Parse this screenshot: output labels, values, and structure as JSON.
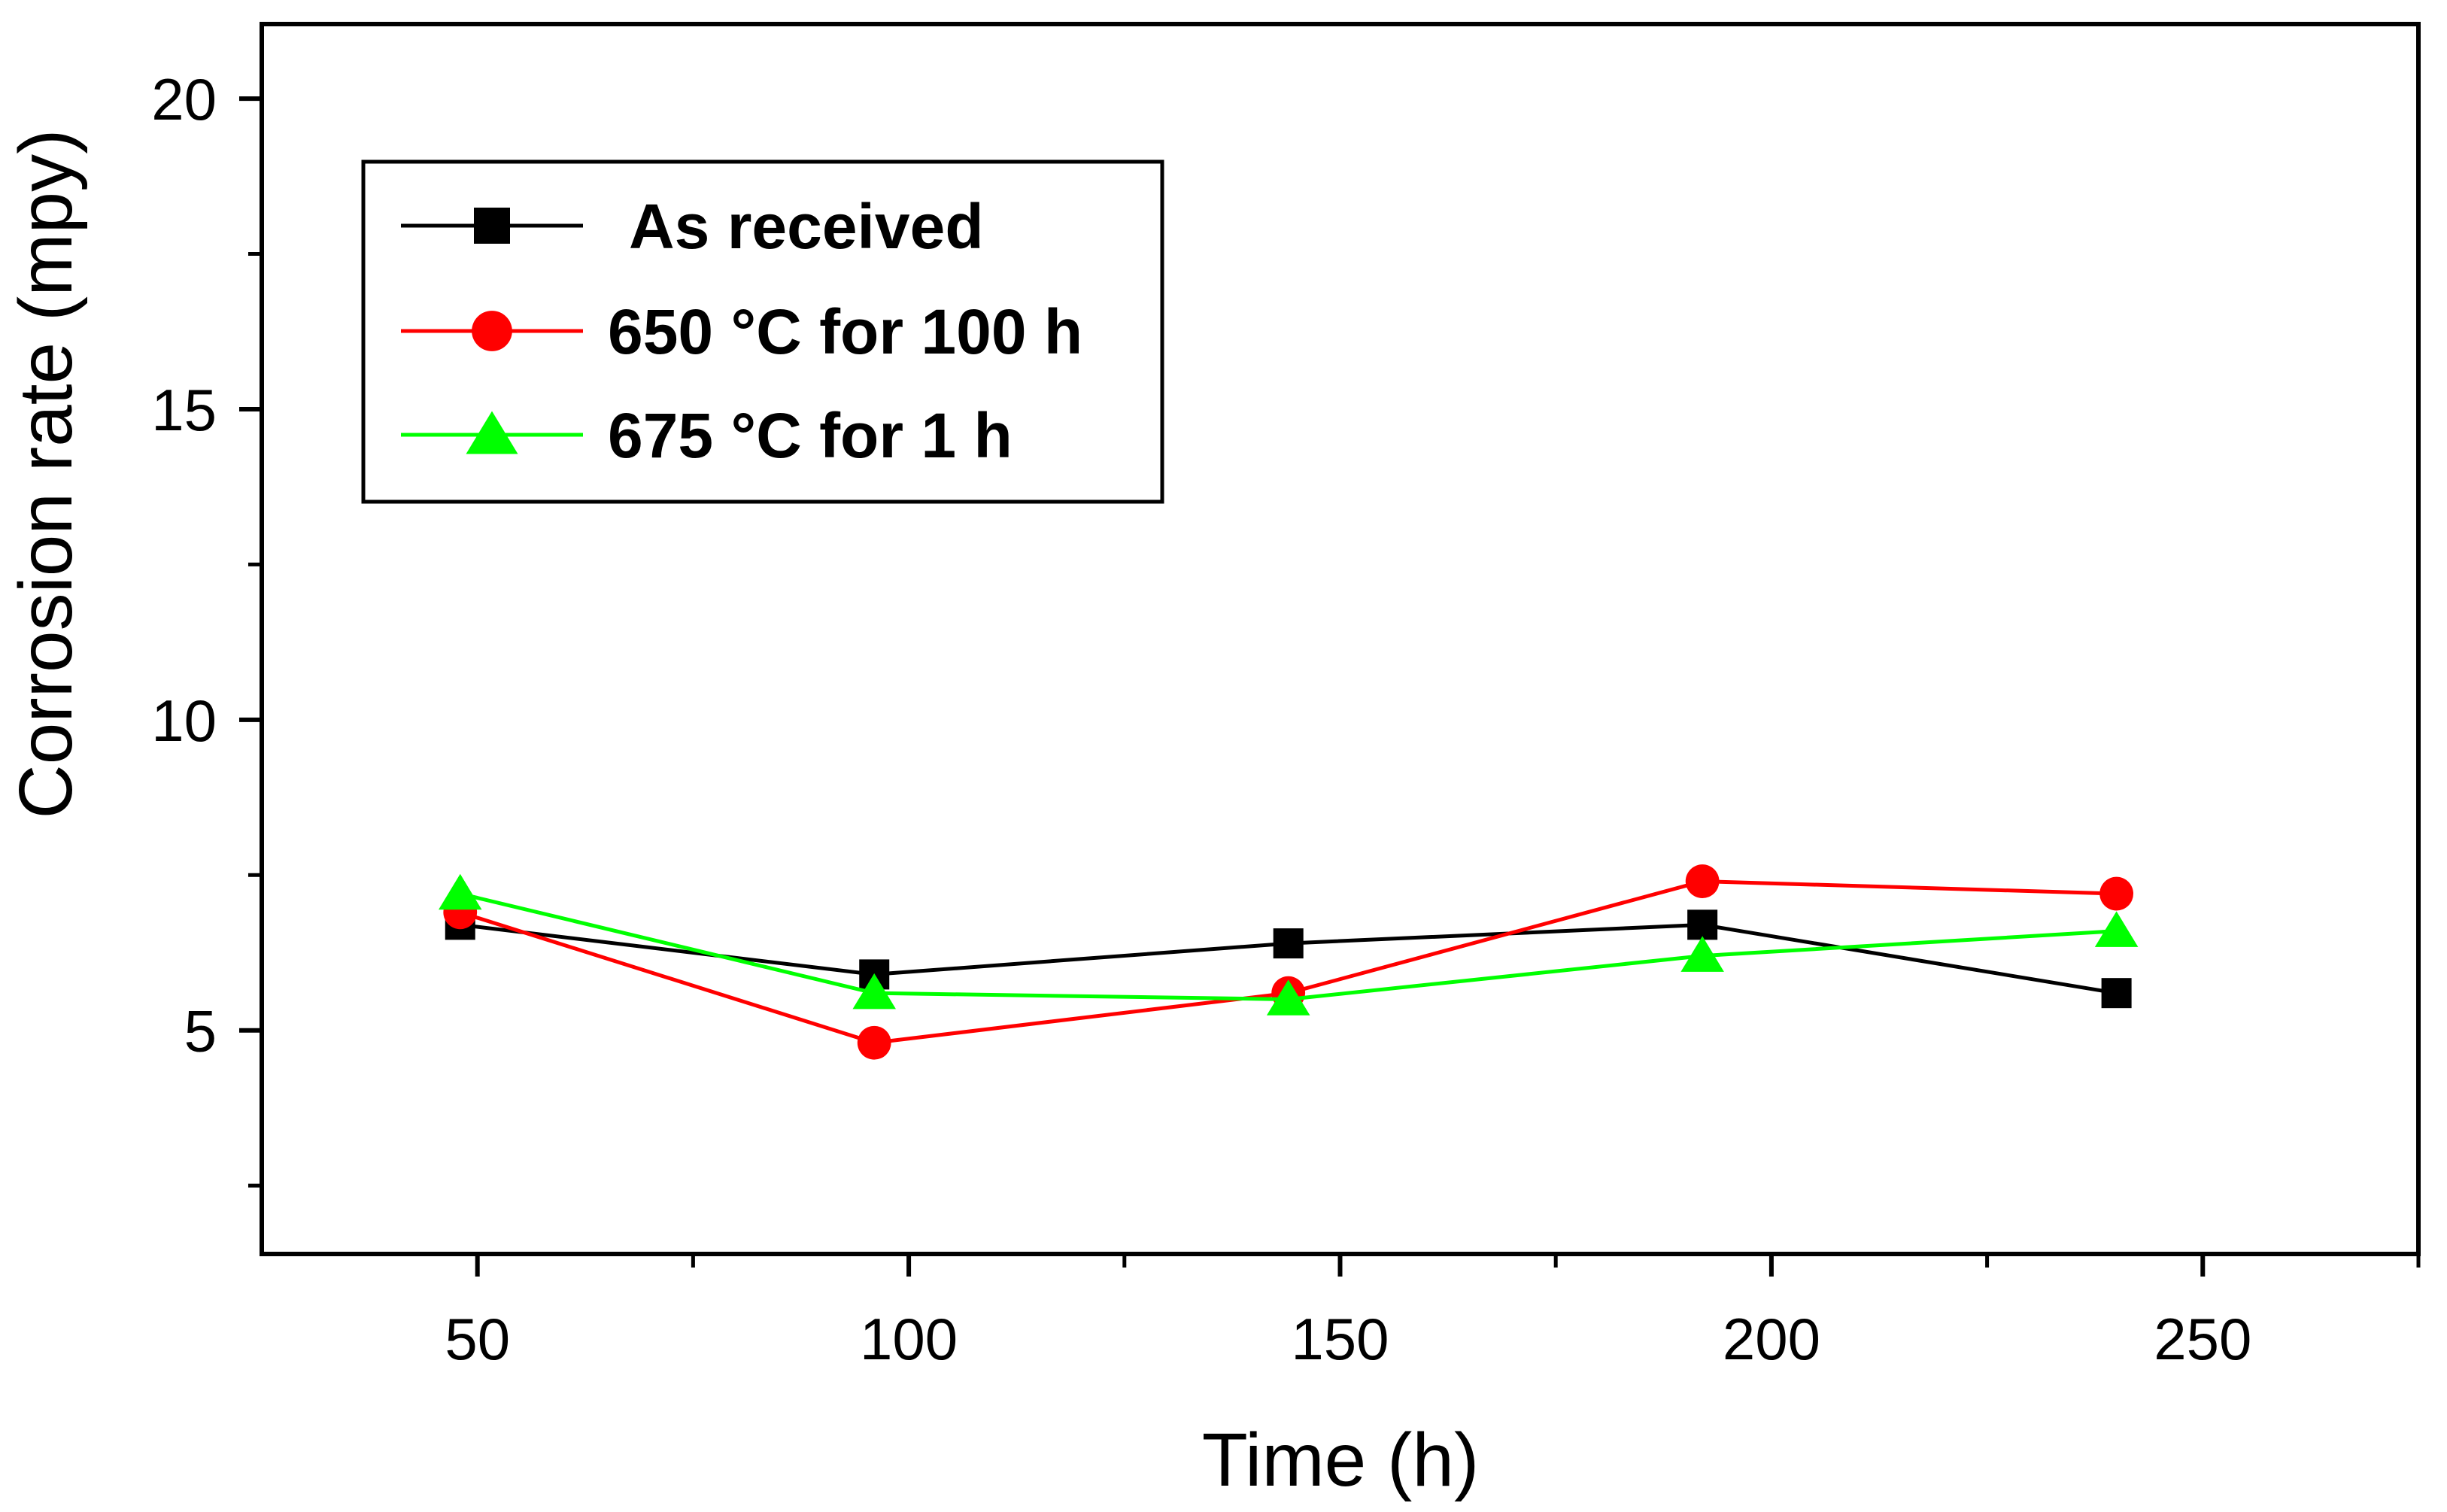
{
  "chart_data": {
    "type": "line",
    "title": "",
    "xlabel": "Time (h)",
    "ylabel": "Corrosion rate (mpy)",
    "xlim": [
      25,
      275
    ],
    "ylim": [
      1.4,
      21.2
    ],
    "xticks": [
      50,
      100,
      150,
      200,
      250
    ],
    "xtick_labels": [
      "50",
      "100",
      "150",
      "200",
      "250"
    ],
    "xminor": [
      75,
      125,
      175,
      225,
      275
    ],
    "yticks": [
      5,
      10,
      15,
      20
    ],
    "ytick_labels": [
      "5",
      "10",
      "15",
      "20"
    ],
    "yminor": [
      2.5,
      7.5,
      12.5,
      17.5
    ],
    "grid": false,
    "legend_position": "top-left",
    "x": [
      48,
      96,
      144,
      192,
      240
    ],
    "series": [
      {
        "name": "As received",
        "color": "#000000",
        "marker": "square",
        "values": [
          6.7,
          5.9,
          6.4,
          6.7,
          5.6
        ]
      },
      {
        "name": "650 °C for 100 h",
        "color": "#ff0000",
        "marker": "circle",
        "values": [
          6.9,
          4.8,
          5.6,
          7.4,
          7.2
        ]
      },
      {
        "name": "675 °C for 1 h",
        "color": "#00ff00",
        "marker": "triangle",
        "values": [
          7.2,
          5.6,
          5.5,
          6.2,
          6.6
        ]
      }
    ]
  }
}
